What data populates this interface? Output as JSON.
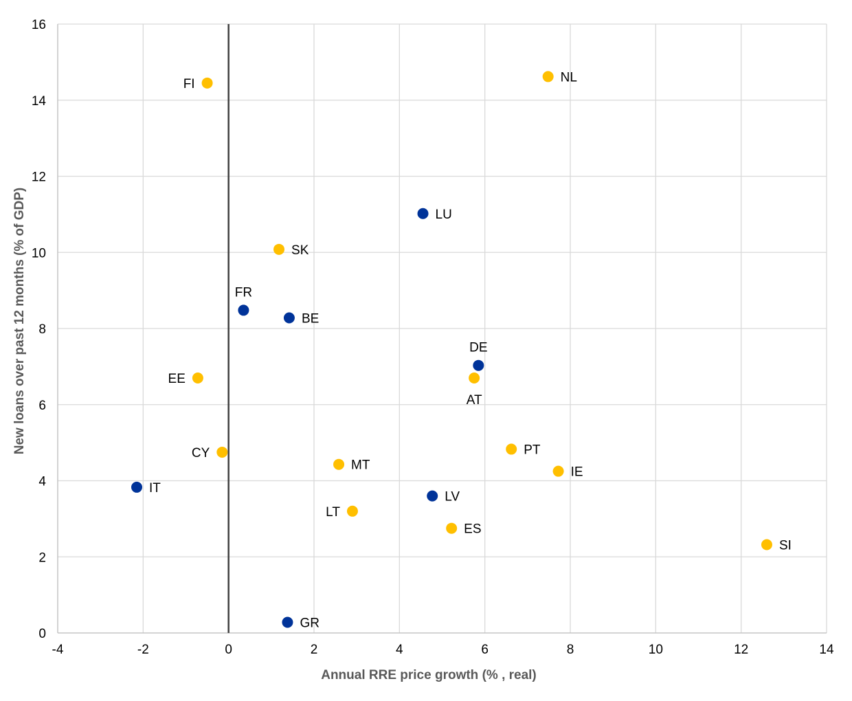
{
  "chart_data": {
    "type": "scatter",
    "xlabel": "Annual RRE price growth (% , real)",
    "ylabel": "New loans over past 12 months (% of GDP)",
    "xlim": [
      -4,
      14
    ],
    "ylim": [
      0,
      16
    ],
    "xticks": [
      -4,
      -2,
      0,
      2,
      4,
      6,
      8,
      10,
      12,
      14
    ],
    "yticks": [
      0,
      2,
      4,
      6,
      8,
      10,
      12,
      14,
      16
    ],
    "grid": true,
    "zero_line": "x = 0",
    "colors": {
      "blue": "#003399",
      "yellow": "#FFBF00"
    },
    "points": [
      {
        "label": "FI",
        "x": -0.5,
        "y": 14.45,
        "color": "yellow",
        "label_pos": "left"
      },
      {
        "label": "NL",
        "x": 7.48,
        "y": 14.62,
        "color": "yellow",
        "label_pos": "right"
      },
      {
        "label": "LU",
        "x": 4.55,
        "y": 11.02,
        "color": "blue",
        "label_pos": "right"
      },
      {
        "label": "SK",
        "x": 1.18,
        "y": 10.08,
        "color": "yellow",
        "label_pos": "right"
      },
      {
        "label": "FR",
        "x": 0.35,
        "y": 8.48,
        "color": "blue",
        "label_pos": "above"
      },
      {
        "label": "BE",
        "x": 1.42,
        "y": 8.28,
        "color": "blue",
        "label_pos": "right"
      },
      {
        "label": "DE",
        "x": 5.85,
        "y": 7.03,
        "color": "blue",
        "label_pos": "above"
      },
      {
        "label": "AT",
        "x": 5.75,
        "y": 6.7,
        "color": "yellow",
        "label_pos": "below"
      },
      {
        "label": "EE",
        "x": -0.72,
        "y": 6.7,
        "color": "yellow",
        "label_pos": "left"
      },
      {
        "label": "CY",
        "x": -0.15,
        "y": 4.75,
        "color": "yellow",
        "label_pos": "left"
      },
      {
        "label": "PT",
        "x": 6.62,
        "y": 4.83,
        "color": "yellow",
        "label_pos": "right"
      },
      {
        "label": "MT",
        "x": 2.58,
        "y": 4.43,
        "color": "yellow",
        "label_pos": "right"
      },
      {
        "label": "IE",
        "x": 7.72,
        "y": 4.25,
        "color": "yellow",
        "label_pos": "right"
      },
      {
        "label": "IT",
        "x": -2.15,
        "y": 3.83,
        "color": "blue",
        "label_pos": "right"
      },
      {
        "label": "LV",
        "x": 4.77,
        "y": 3.6,
        "color": "blue",
        "label_pos": "right"
      },
      {
        "label": "LT",
        "x": 2.9,
        "y": 3.2,
        "color": "yellow",
        "label_pos": "left"
      },
      {
        "label": "ES",
        "x": 5.22,
        "y": 2.75,
        "color": "yellow",
        "label_pos": "right"
      },
      {
        "label": "SI",
        "x": 12.6,
        "y": 2.32,
        "color": "yellow",
        "label_pos": "right"
      },
      {
        "label": "GR",
        "x": 1.38,
        "y": 0.28,
        "color": "blue",
        "label_pos": "right"
      }
    ]
  }
}
